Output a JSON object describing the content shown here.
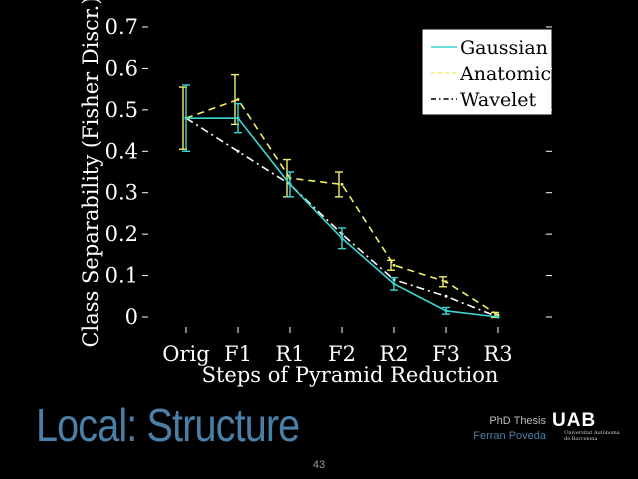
{
  "chart_data": {
    "type": "line",
    "title": "",
    "xlabel": "Steps of Pyramid Reduction",
    "ylabel": "Class Separability (Fisher Discr.)",
    "categories": [
      "Orig",
      "F1",
      "R1",
      "F2",
      "R2",
      "F3",
      "R3"
    ],
    "ylim": [
      0,
      0.7
    ],
    "yticks": [
      0,
      0.1,
      0.2,
      0.3,
      0.4,
      0.5,
      0.6,
      0.7
    ],
    "ytick_labels": [
      "0",
      "0.1",
      "0.2",
      "0.3",
      "0.4",
      "0.5",
      "0.6",
      "0.7"
    ],
    "legend_position": "top-right",
    "series": [
      {
        "name": "Gaussian",
        "color": "#3cd6d2",
        "dash": "solid",
        "values": [
          0.48,
          0.48,
          0.32,
          0.19,
          0.08,
          0.015,
          0.0
        ],
        "errors": [
          0.08,
          0.035,
          0.03,
          0.025,
          0.015,
          0.008,
          0.0
        ]
      },
      {
        "name": "Anatomic",
        "color": "#f2f06a",
        "dash": "dashed",
        "values": [
          0.48,
          0.525,
          0.335,
          0.32,
          0.125,
          0.085,
          0.005
        ],
        "errors": [
          0.075,
          0.06,
          0.045,
          0.03,
          0.012,
          0.012,
          0.006
        ]
      },
      {
        "name": "Wavelet",
        "color": "#ffffff",
        "dash": "dashdot",
        "values": [
          0.48,
          0.4,
          0.32,
          0.2,
          0.09,
          0.05,
          0.0
        ],
        "errors": [
          0,
          0,
          0,
          0,
          0,
          0,
          0
        ]
      }
    ]
  },
  "slide": {
    "title": "Local: Structure",
    "author_line1": "PhD Thesis",
    "author_line2": "Ferran Poveda",
    "logo_mark": "UAB",
    "logo_sub1": "Universitat Autònoma",
    "logo_sub2": "de Barcelona",
    "page_number": "43"
  }
}
